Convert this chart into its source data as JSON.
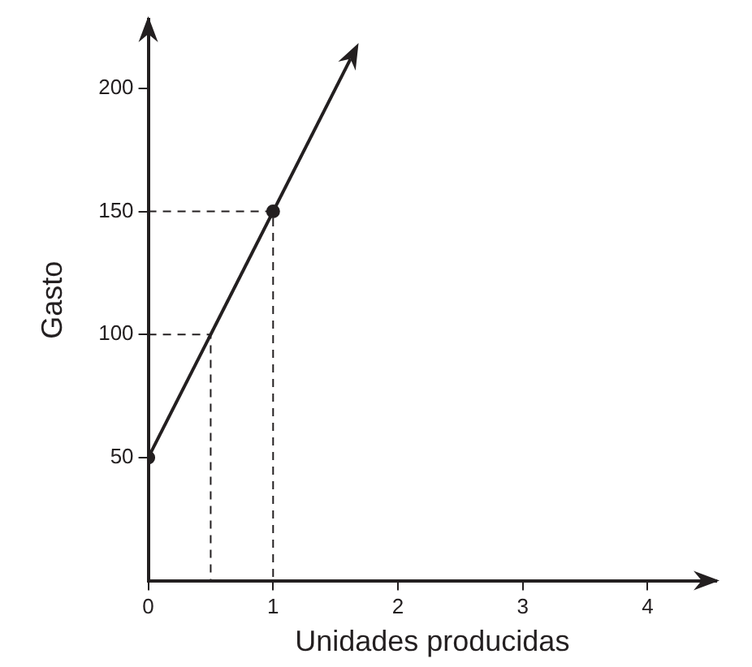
{
  "chart_data": {
    "type": "line",
    "xlabel": "Unidades producidas",
    "ylabel": "Gasto",
    "xlim": [
      0,
      4.55
    ],
    "ylim": [
      0,
      228
    ],
    "xticks": [
      0,
      1,
      2,
      3,
      4
    ],
    "yticks": [
      50,
      100,
      150,
      200
    ],
    "grid": false,
    "legend": false,
    "series": [
      {
        "type": "line",
        "color": "#231f20",
        "x": [
          0,
          1.62
        ],
        "values": [
          50,
          212
        ],
        "line_style": "solid"
      },
      {
        "type": "line",
        "color": "#231f20",
        "x": [
          0,
          1,
          1
        ],
        "values": [
          150,
          150,
          0
        ],
        "marker": "none",
        "line_style": "dashed"
      },
      {
        "type": "line",
        "color": "#231f20",
        "x": [
          0,
          0.5,
          0.5
        ],
        "values": [
          100,
          100,
          0
        ],
        "marker": "none",
        "line_style": "dashed"
      },
      {
        "type": "scatter",
        "color": "#231f20",
        "x": [
          0,
          1
        ],
        "values": [
          50,
          150
        ],
        "marker": "circle"
      }
    ]
  }
}
